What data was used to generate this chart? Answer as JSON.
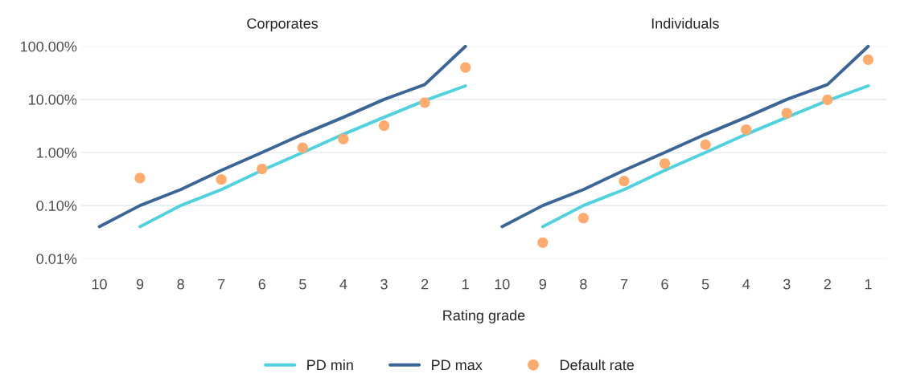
{
  "chart_data": [
    {
      "type": "line",
      "title": "Corporates",
      "xlabel": "Rating grade",
      "categories": [
        "10",
        "9",
        "8",
        "7",
        "6",
        "5",
        "4",
        "3",
        "2",
        "1"
      ],
      "log": "y",
      "ylim": [
        0.01,
        100
      ],
      "yticks": [
        {
          "value": 0.01,
          "label": "0.01%"
        },
        {
          "value": 0.1,
          "label": "0.10%"
        },
        {
          "value": 1,
          "label": "1.00%"
        },
        {
          "value": 10,
          "label": "10.00%"
        },
        {
          "value": 100,
          "label": "100.00%"
        }
      ],
      "grid": "y",
      "legend": "bottom",
      "series": [
        {
          "name": "PD min",
          "color": "#4fd1de",
          "values": [
            null,
            0.04,
            0.1,
            0.2,
            0.46,
            1.0,
            2.2,
            4.6,
            9.5,
            18
          ]
        },
        {
          "name": "PD max",
          "color": "#3a6596",
          "values": [
            0.04,
            0.1,
            0.2,
            0.46,
            1.0,
            2.2,
            4.6,
            10,
            19,
            100
          ]
        },
        {
          "name": "Default rate",
          "type": "scatter",
          "color": "#ffab6e",
          "values": [
            null,
            0.33,
            null,
            0.31,
            0.49,
            1.23,
            1.79,
            3.2,
            8.7,
            40
          ]
        }
      ]
    },
    {
      "type": "line",
      "title": "Individuals",
      "categories": [
        "10",
        "9",
        "8",
        "7",
        "6",
        "5",
        "4",
        "3",
        "2",
        "1"
      ],
      "log": "y",
      "ylim": [
        0.01,
        100
      ],
      "yticks": [
        {
          "value": 0.01,
          "label": null
        },
        {
          "value": 0.1,
          "label": null
        },
        {
          "value": 1,
          "label": null
        },
        {
          "value": 10,
          "label": null
        },
        {
          "value": 100,
          "label": null
        }
      ],
      "grid": "y",
      "tick_labels": "x",
      "series": [
        {
          "name": "PD min",
          "color": "#4fd1de",
          "values": [
            null,
            0.04,
            0.1,
            0.2,
            0.46,
            1.0,
            2.2,
            4.6,
            9.5,
            18
          ]
        },
        {
          "name": "PD max",
          "color": "#3a6596",
          "values": [
            0.04,
            0.1,
            0.2,
            0.46,
            1.0,
            2.2,
            4.6,
            10,
            19,
            100
          ]
        },
        {
          "name": "Default rate",
          "type": "scatter",
          "color": "#ffab6e",
          "values": [
            null,
            0.02,
            0.058,
            0.29,
            0.62,
            1.4,
            2.7,
            5.5,
            9.8,
            56
          ]
        }
      ]
    }
  ]
}
